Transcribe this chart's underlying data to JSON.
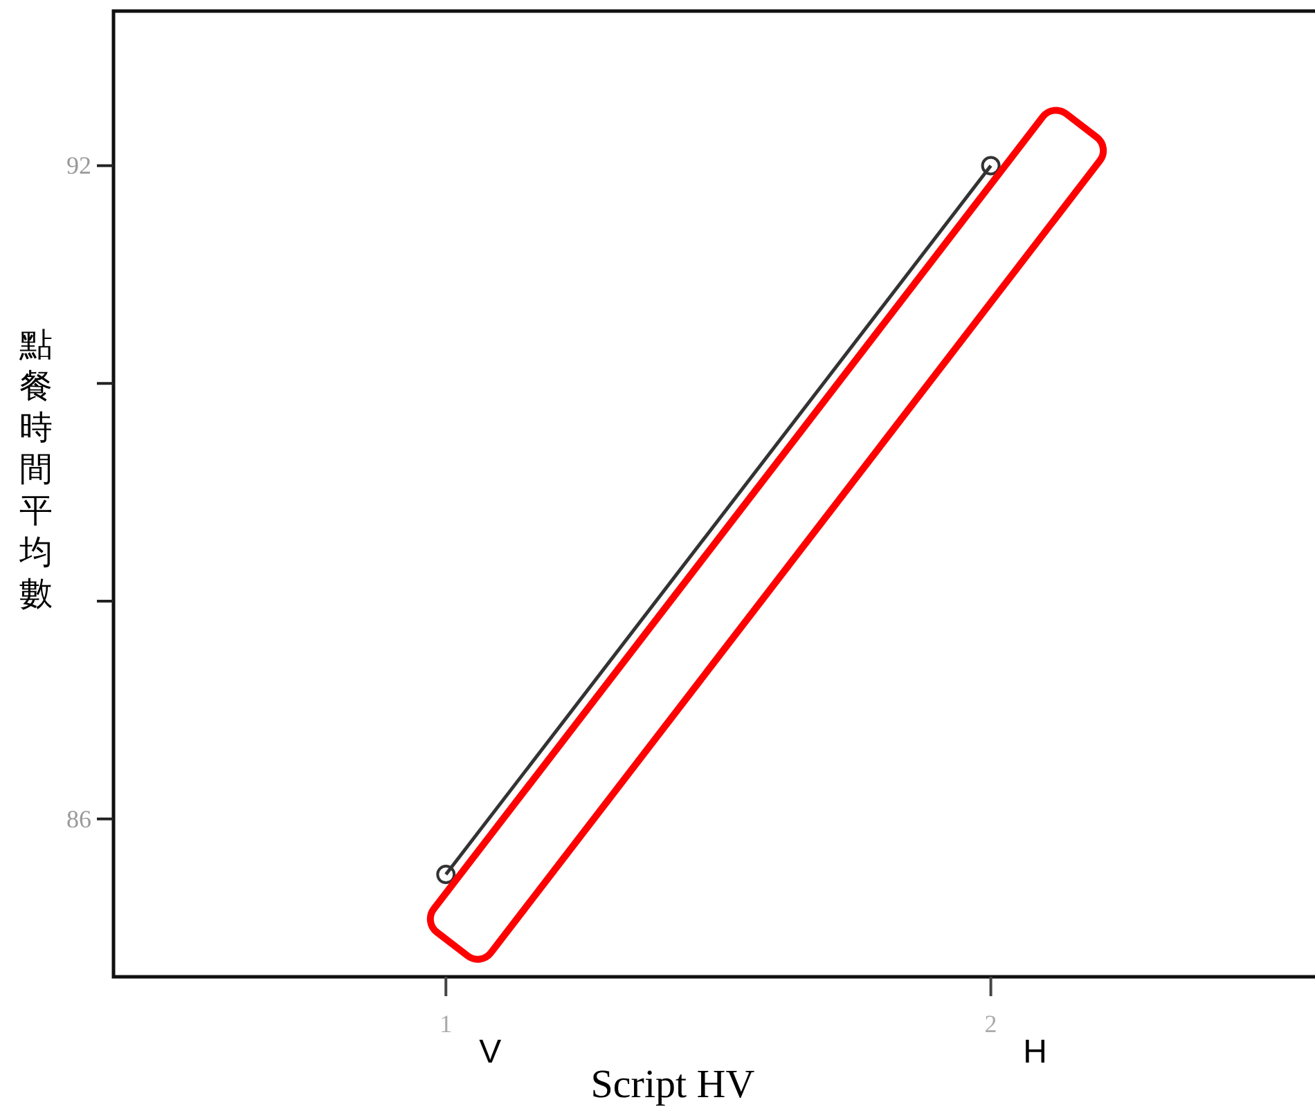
{
  "chart_data": {
    "type": "line",
    "xlabel": "Script HV",
    "ylabel": "點餐時間平均數",
    "x": [
      1,
      2
    ],
    "series": [
      {
        "color": "#333333",
        "values": [
          85.49,
          92.0
        ]
      }
    ],
    "xlim": [
      0.39,
      2.6
    ],
    "ylim": [
      84.55,
      93.42
    ],
    "xticks": [
      1,
      2
    ],
    "yticks": [
      86,
      {
        "value": 88,
        "label": null
      },
      {
        "value": 90,
        "label": null
      },
      92
    ],
    "annotations": [
      "V",
      "H"
    ],
    "marker": "circle",
    "line_style": "solid",
    "grid": false
  }
}
